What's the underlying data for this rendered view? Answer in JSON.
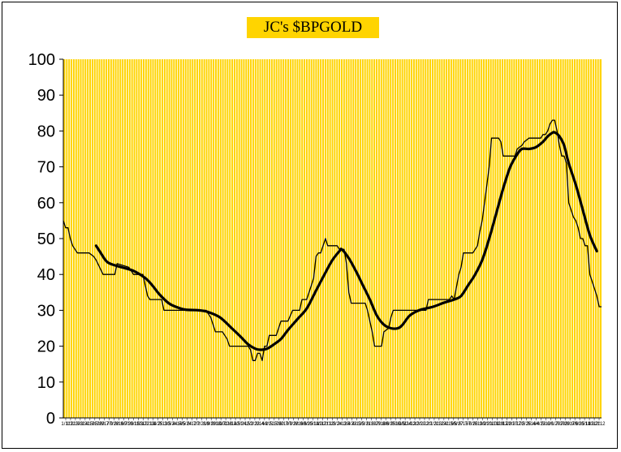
{
  "chart_data": {
    "type": "line",
    "title": "JC's $BPGOLD",
    "xlabel": "",
    "ylabel": "",
    "ylim": [
      0,
      100
    ],
    "yticks": [
      0,
      10,
      20,
      30,
      40,
      50,
      60,
      70,
      80,
      90,
      100
    ],
    "x_tick_labels": [
      "1/11",
      "1/31",
      "2/19",
      "3/11",
      "3/31",
      "4/19",
      "5/10",
      "5/29",
      "6/17",
      "7/9",
      "7/28",
      "8/16",
      "9/7",
      "9/26",
      "10/15",
      "11/3",
      "11/22",
      "12/13",
      "1/4",
      "1/25",
      "2/13",
      "3/5",
      "3/24",
      "4/14",
      "5/5",
      "5/24",
      "6/12",
      "7/2",
      "7/21",
      "8/9",
      "8/29",
      "9/18",
      "10/7",
      "10/26",
      "11/14",
      "12/5",
      "12/24",
      "1/15",
      "2/3",
      "2/23",
      "3/14",
      "4/2",
      "4/21",
      "5/10",
      "5/30",
      "6/19",
      "7/9",
      "7/28",
      "8/16",
      "9/6",
      "9/25",
      "10/14",
      "11/2",
      "11/21",
      "12/12",
      "1/3",
      "1/24",
      "2/12",
      "3/4",
      "3/23",
      "4/13",
      "5/2",
      "5/21",
      "6/10",
      "6/29",
      "7/18",
      "8/6",
      "8/25",
      "9/16",
      "10/5",
      "10/24",
      "11/12",
      "12/3",
      "12/22",
      "1/12",
      "2/1",
      "2/21",
      "3/12",
      "3/31",
      "4/19",
      "5/8",
      "5/27",
      "6/15",
      "7/6",
      "7/25",
      "8/13",
      "9/2",
      "9/21",
      "10/10",
      "10/29",
      "11/17",
      "12/8",
      "12/27",
      "1/17",
      "2/5",
      "2/25",
      "3/16",
      "4/4",
      "4/23",
      "5/12",
      "6/1",
      "6/20",
      "7/10",
      "7/29",
      "8/17",
      "9/6",
      "9/25",
      "10/14",
      "11/2",
      "11/21",
      "12/12"
    ],
    "background_color": "#ffd400",
    "grid_color": "#ffffff",
    "grid": true,
    "series": [
      {
        "id": "raw",
        "color": "#000000",
        "values": [
          [
            0,
            55
          ],
          [
            1,
            53
          ],
          [
            2,
            53
          ],
          [
            3,
            50
          ],
          [
            4,
            48
          ],
          [
            6,
            46
          ],
          [
            11,
            46
          ],
          [
            13,
            45
          ],
          [
            14,
            44
          ],
          [
            17,
            40
          ],
          [
            22,
            40
          ],
          [
            23,
            43
          ],
          [
            28,
            42
          ],
          [
            30,
            40
          ],
          [
            34,
            40
          ],
          [
            35,
            37
          ],
          [
            36,
            34
          ],
          [
            37,
            33
          ],
          [
            42,
            33
          ],
          [
            43,
            30
          ],
          [
            55,
            30
          ],
          [
            61,
            30
          ],
          [
            62,
            29
          ],
          [
            63,
            28
          ],
          [
            64,
            26
          ],
          [
            65,
            24
          ],
          [
            68,
            24
          ],
          [
            70,
            22
          ],
          [
            71,
            20
          ],
          [
            79,
            20
          ],
          [
            80,
            19
          ],
          [
            81,
            16
          ],
          [
            82,
            16
          ],
          [
            83,
            18
          ],
          [
            84,
            18
          ],
          [
            85,
            16
          ],
          [
            86,
            20
          ],
          [
            87,
            20
          ],
          [
            88,
            23
          ],
          [
            91,
            23
          ],
          [
            92,
            25
          ],
          [
            93,
            27
          ],
          [
            96,
            27
          ],
          [
            98,
            30
          ],
          [
            101,
            30
          ],
          [
            102,
            33
          ],
          [
            104,
            33
          ],
          [
            106,
            37
          ],
          [
            107,
            39
          ],
          [
            108,
            45
          ],
          [
            109,
            46
          ],
          [
            110,
            46
          ],
          [
            111,
            48
          ],
          [
            112,
            50
          ],
          [
            113,
            48
          ],
          [
            117,
            48
          ],
          [
            118,
            47
          ],
          [
            120,
            47
          ],
          [
            121,
            43
          ],
          [
            122,
            35
          ],
          [
            123,
            32
          ],
          [
            129,
            32
          ],
          [
            130,
            30
          ],
          [
            131,
            27
          ],
          [
            132,
            24
          ],
          [
            133,
            20
          ],
          [
            136,
            20
          ],
          [
            137,
            24
          ],
          [
            139,
            25
          ],
          [
            140,
            28
          ],
          [
            141,
            30
          ],
          [
            155,
            30
          ],
          [
            156,
            33
          ],
          [
            160,
            33
          ],
          [
            165,
            33
          ],
          [
            166,
            34
          ],
          [
            167,
            33
          ],
          [
            169,
            40
          ],
          [
            170,
            42
          ],
          [
            171,
            46
          ],
          [
            172,
            46
          ],
          [
            175,
            46
          ],
          [
            176,
            47
          ],
          [
            177,
            48
          ],
          [
            178,
            52
          ],
          [
            179,
            55
          ],
          [
            180,
            60
          ],
          [
            181,
            65
          ],
          [
            182,
            70
          ],
          [
            183,
            78
          ],
          [
            186,
            78
          ],
          [
            187,
            77
          ],
          [
            188,
            73
          ],
          [
            190,
            73
          ],
          [
            193,
            73
          ],
          [
            194,
            75
          ],
          [
            196,
            76
          ],
          [
            197,
            77
          ],
          [
            199,
            78
          ],
          [
            204,
            78
          ],
          [
            205,
            79
          ],
          [
            206,
            79
          ],
          [
            207,
            80
          ],
          [
            208,
            82
          ],
          [
            209,
            83
          ],
          [
            210,
            83
          ],
          [
            211,
            80
          ],
          [
            212,
            76
          ],
          [
            213,
            73
          ],
          [
            214,
            73
          ],
          [
            215,
            71
          ],
          [
            216,
            60
          ],
          [
            217,
            58
          ],
          [
            218,
            56
          ],
          [
            219,
            55
          ],
          [
            220,
            53
          ],
          [
            221,
            50
          ],
          [
            222,
            50
          ],
          [
            223,
            48
          ],
          [
            224,
            48
          ],
          [
            225,
            40
          ],
          [
            226,
            38
          ],
          [
            227,
            36
          ],
          [
            228,
            34
          ],
          [
            229,
            31
          ],
          [
            230,
            31
          ]
        ]
      },
      {
        "id": "smooth",
        "color": "#000000",
        "values": [
          [
            14,
            48
          ],
          [
            16,
            46
          ],
          [
            18,
            44
          ],
          [
            20,
            43
          ],
          [
            25,
            42
          ],
          [
            30,
            41
          ],
          [
            35,
            39
          ],
          [
            38,
            37
          ],
          [
            41,
            34.5
          ],
          [
            45,
            32
          ],
          [
            48,
            31
          ],
          [
            52,
            30.2
          ],
          [
            58,
            30
          ],
          [
            62,
            29.5
          ],
          [
            67,
            28
          ],
          [
            72,
            25
          ],
          [
            76,
            22.5
          ],
          [
            79,
            20.5
          ],
          [
            82,
            19.3
          ],
          [
            84,
            19
          ],
          [
            87,
            19.3
          ],
          [
            90,
            20.5
          ],
          [
            93,
            22
          ],
          [
            96,
            24.5
          ],
          [
            100,
            27.5
          ],
          [
            104,
            30.5
          ],
          [
            108,
            35.5
          ],
          [
            112,
            40.5
          ],
          [
            115,
            44
          ],
          [
            118,
            46.5
          ],
          [
            119,
            47
          ],
          [
            122,
            44.5
          ],
          [
            125,
            41
          ],
          [
            128,
            37
          ],
          [
            131,
            33
          ],
          [
            134,
            28.5
          ],
          [
            137,
            26
          ],
          [
            140,
            25
          ],
          [
            143,
            25
          ],
          [
            145,
            26
          ],
          [
            148,
            28.5
          ],
          [
            152,
            30
          ],
          [
            158,
            31
          ],
          [
            163,
            32.2
          ],
          [
            167,
            33
          ],
          [
            170,
            34
          ],
          [
            173,
            37
          ],
          [
            176,
            40
          ],
          [
            179,
            44
          ],
          [
            182,
            50
          ],
          [
            185,
            57
          ],
          [
            188,
            64
          ],
          [
            191,
            70
          ],
          [
            194,
            73.5
          ],
          [
            196,
            75
          ],
          [
            199,
            75
          ],
          [
            202,
            75.5
          ],
          [
            205,
            77
          ],
          [
            207,
            78.5
          ],
          [
            209,
            79.5
          ],
          [
            210,
            79.6
          ],
          [
            212,
            78.5
          ],
          [
            214,
            76
          ],
          [
            216,
            71
          ],
          [
            219,
            65
          ],
          [
            222,
            58
          ],
          [
            225,
            51
          ],
          [
            228,
            46.5
          ]
        ]
      }
    ]
  }
}
